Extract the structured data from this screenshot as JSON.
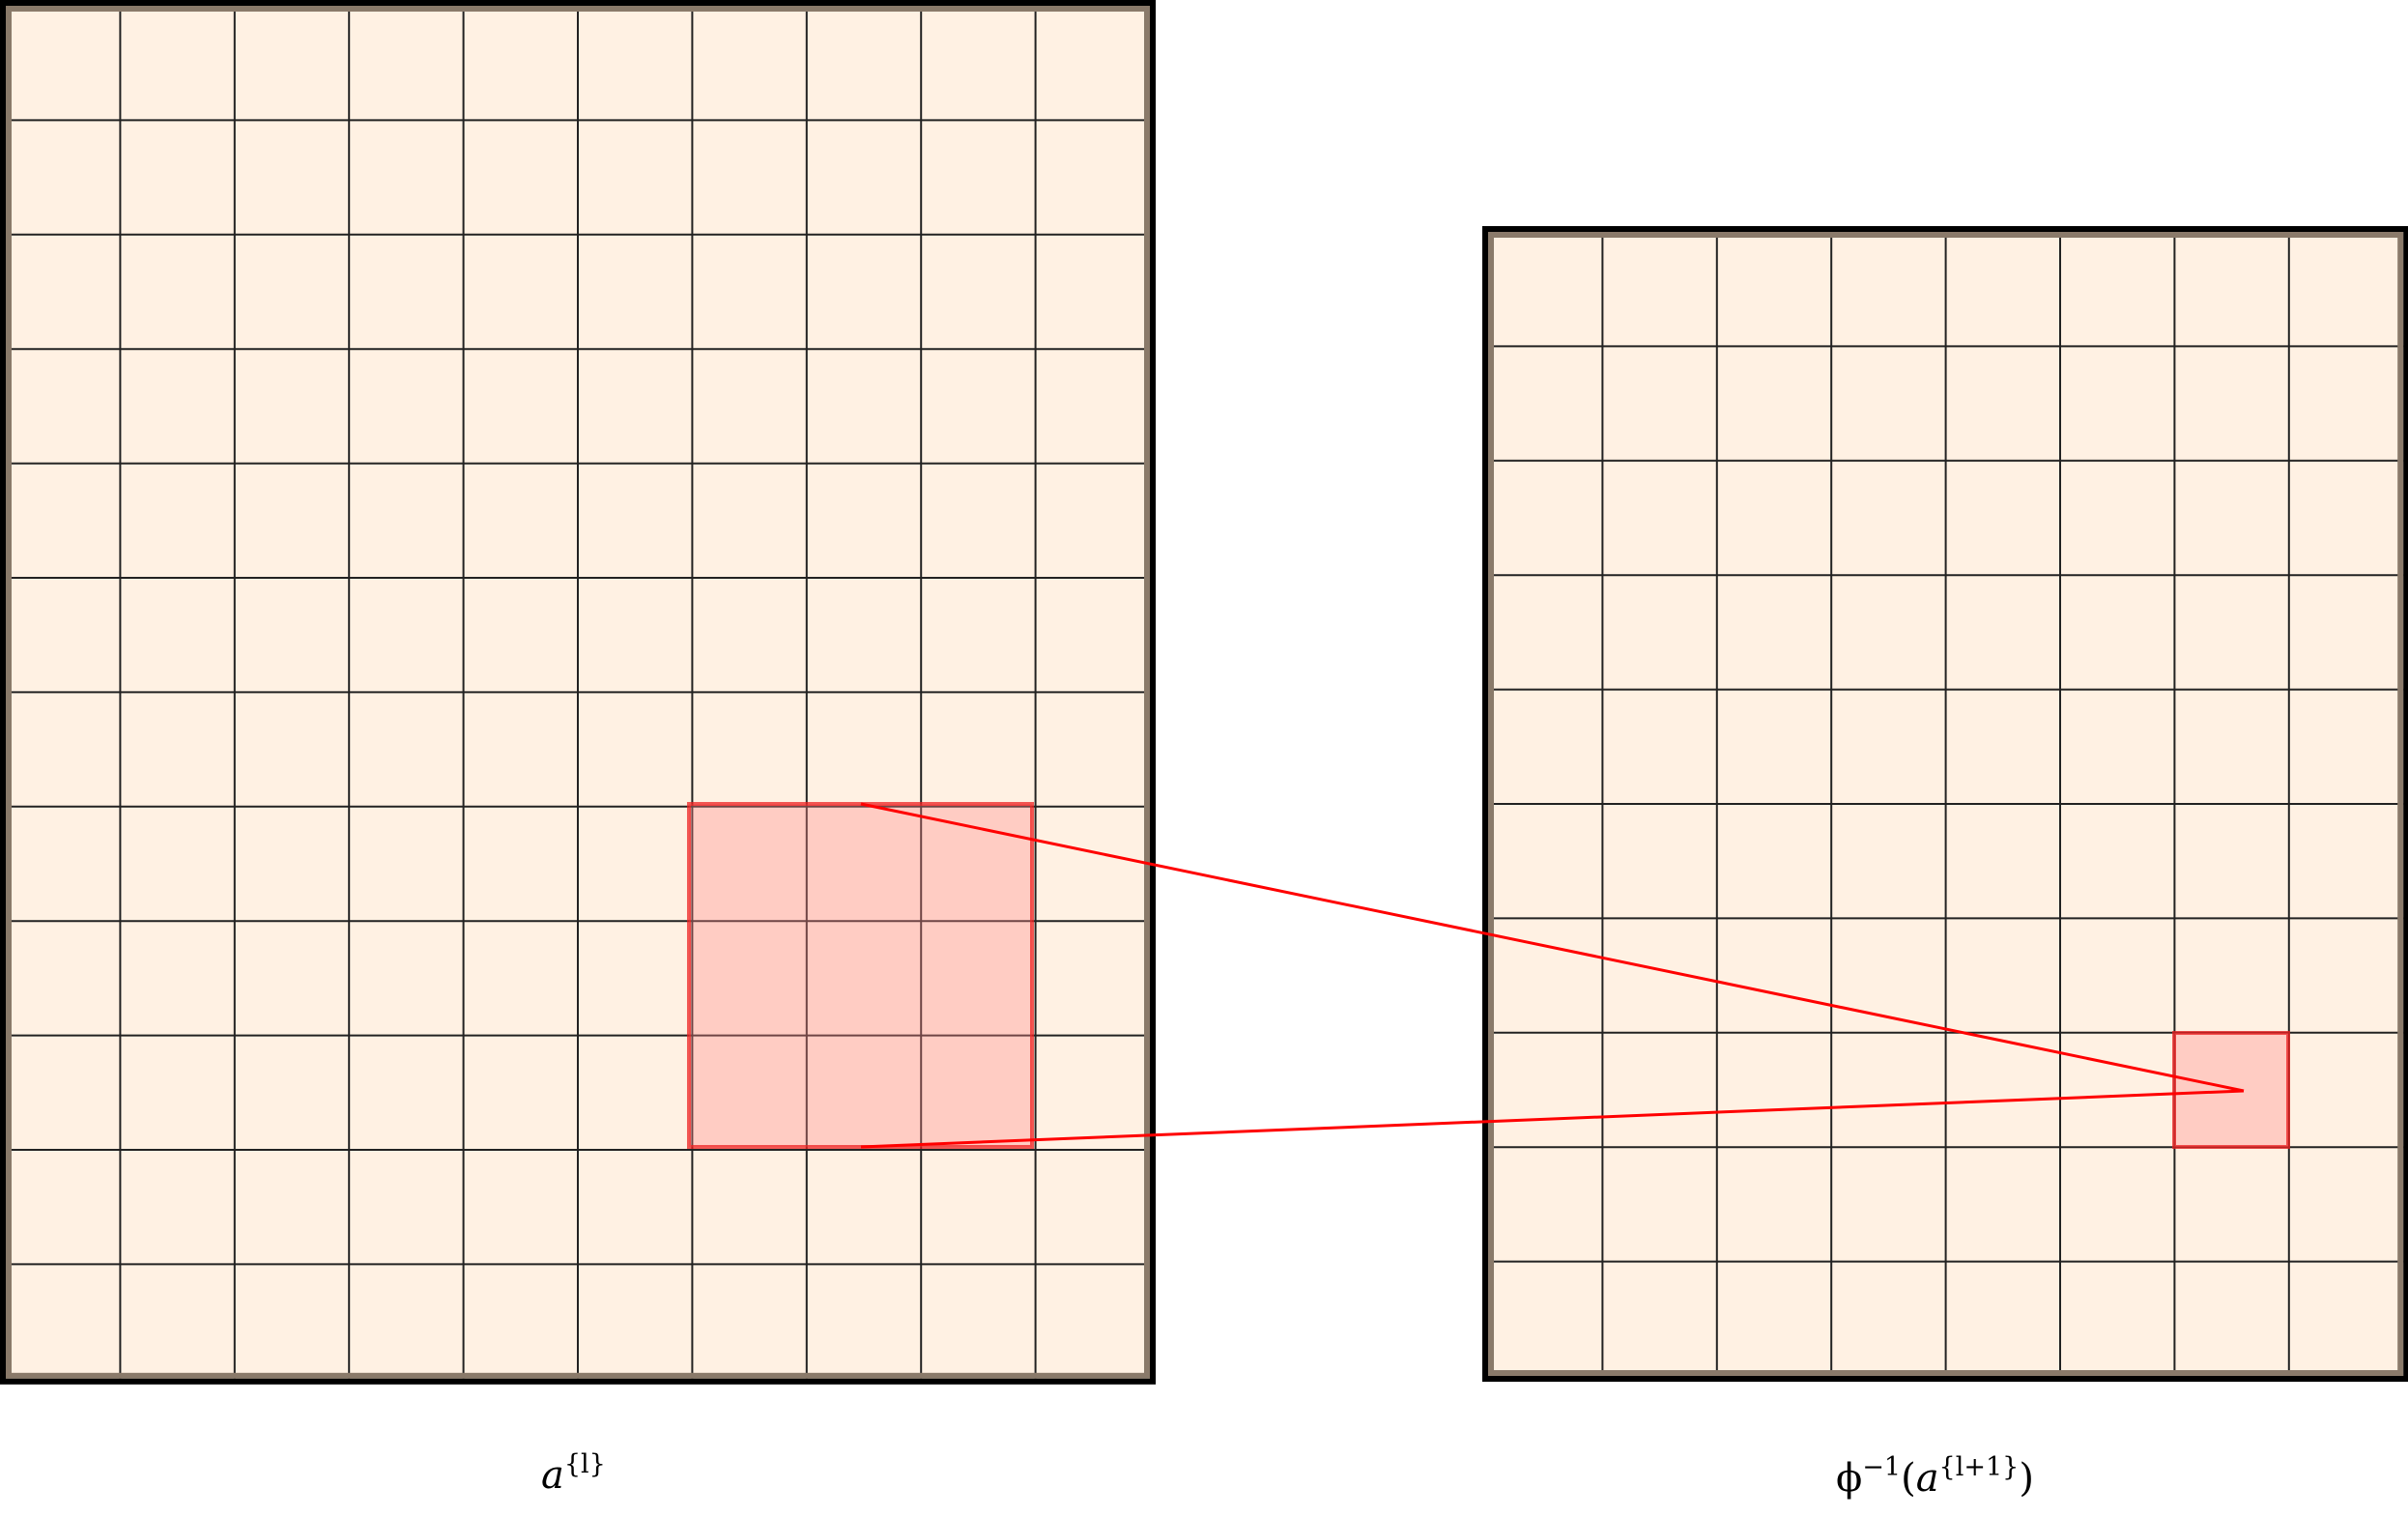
{
  "left_grid": {
    "cols": 10,
    "rows": 12,
    "label_base": "a",
    "label_sup": "{l}"
  },
  "right_grid": {
    "cols": 8,
    "rows": 10,
    "label_phi": "ϕ",
    "label_phi_sup": "−1",
    "label_open": "(",
    "label_base": "a",
    "label_sup": "{l+1}",
    "label_close": ")"
  },
  "highlight": {
    "left_block_cells": "3x3",
    "right_block_cells": "1x1"
  },
  "colors": {
    "fill": "#fff1e3",
    "grid_line": "#000000",
    "border": "#000000",
    "inner_border": "#8a7a6a",
    "highlight_fill": "#ffd3cd",
    "highlight_stroke": "#ee3333",
    "connector": "#ff0000"
  }
}
